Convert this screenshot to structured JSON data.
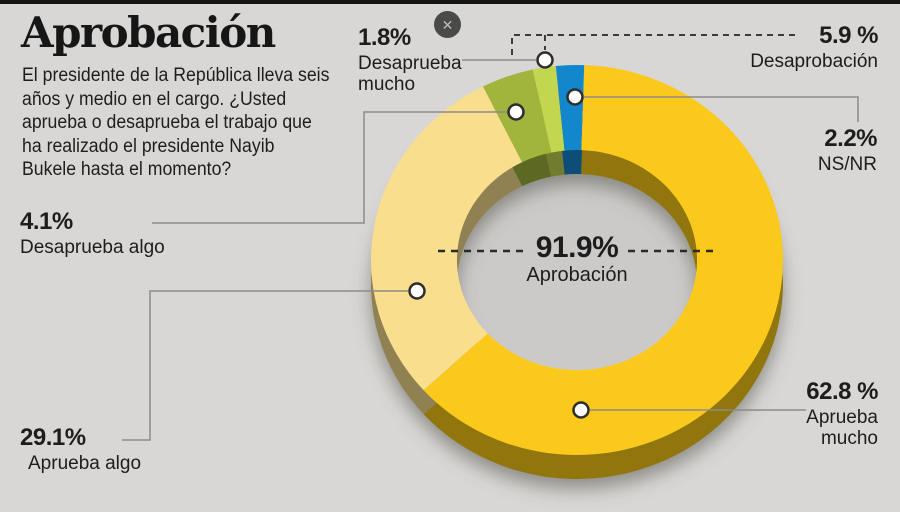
{
  "page": {
    "background": "#D8D7D5",
    "top_bar_color": "#141414"
  },
  "header": {
    "title": "Aprobación",
    "description_lines": [
      "El presidente de la República lleva seis",
      "años y medio en el cargo. ¿Usted",
      "aprueba o desaprueba el trabajo que",
      "ha realizado el presidente Nayib",
      "Bukele hasta el momento?"
    ]
  },
  "close_button": {
    "symbol": "✕"
  },
  "chart_data": {
    "type": "pie",
    "subtype": "3d-donut",
    "title": "Aprobación",
    "direction": "clockwise",
    "start_angle_deg": 2,
    "segments": [
      {
        "label": "Aprueba mucho",
        "value": 62.8,
        "display": "62.8 %",
        "color": "#FAC91C"
      },
      {
        "label": "Aprueba algo",
        "value": 29.1,
        "display": "29.1%",
        "color": "#F8DE8D"
      },
      {
        "label": "Desaprueba algo",
        "value": 4.1,
        "display": "4.1%",
        "color": "#A1B43B"
      },
      {
        "label": "Desaprueba mucho",
        "value": 1.8,
        "display": "1.8%",
        "color": "#C3D64F"
      },
      {
        "label": "NS/NR",
        "value": 2.2,
        "display": "2.2%",
        "color": "#1287CB"
      }
    ],
    "center_total": {
      "value": 91.9,
      "display": "91.9%",
      "label": "Aprobación"
    },
    "aggregate_disapproval": {
      "value": 5.9,
      "display": "5.9 %",
      "label": "Desaprobación"
    }
  },
  "callouts": {
    "desaprueba_mucho": {
      "value": "1.8%",
      "label": "Desaprueba mucho"
    },
    "desaprobacion": {
      "value": "5.9 %",
      "label": "Desaprobación"
    },
    "nsnr": {
      "value": "2.2%",
      "label": "NS/NR"
    },
    "desaprueba_algo": {
      "value": "4.1%",
      "label": "Desaprueba algo"
    },
    "aprueba_algo": {
      "value": "29.1%",
      "label": "Aprueba algo"
    },
    "aprueba_mucho": {
      "value": "62.8 %",
      "label": "Aprueba mucho"
    },
    "center": {
      "value": "91.9%",
      "label": "Aprobación"
    }
  }
}
